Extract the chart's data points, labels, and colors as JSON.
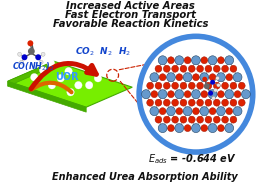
{
  "title_lines": [
    "Increased Active Areas",
    "Fast Electron Transport",
    "Favorable Reaction Kinetics"
  ],
  "bottom_text": "Enhanced Urea Absorption Ability",
  "eads_text": "$E_{ads}$ = -0.644 eV",
  "uor_label": "UOR",
  "reactant": "CO(NH$_2$)$_2$",
  "products": "CO$_2$  N$_2$  H$_2$",
  "bg_color": "#ffffff",
  "sheet_color_main": "#77ee00",
  "sheet_color_dark": "#44aa00",
  "sheet_color_side": "#55bb00",
  "arrow_orange": "#dd6600",
  "arrow_red": "#cc1100",
  "circle_edge": "#4488dd",
  "ni_color": "#6699cc",
  "o_color": "#dd2200",
  "h_color": "#e8e8e8",
  "n_color": "#0000cc",
  "c_color": "#666666",
  "text_dark": "#111111",
  "text_blue": "#1144cc",
  "dashed_red": "#cc2200"
}
